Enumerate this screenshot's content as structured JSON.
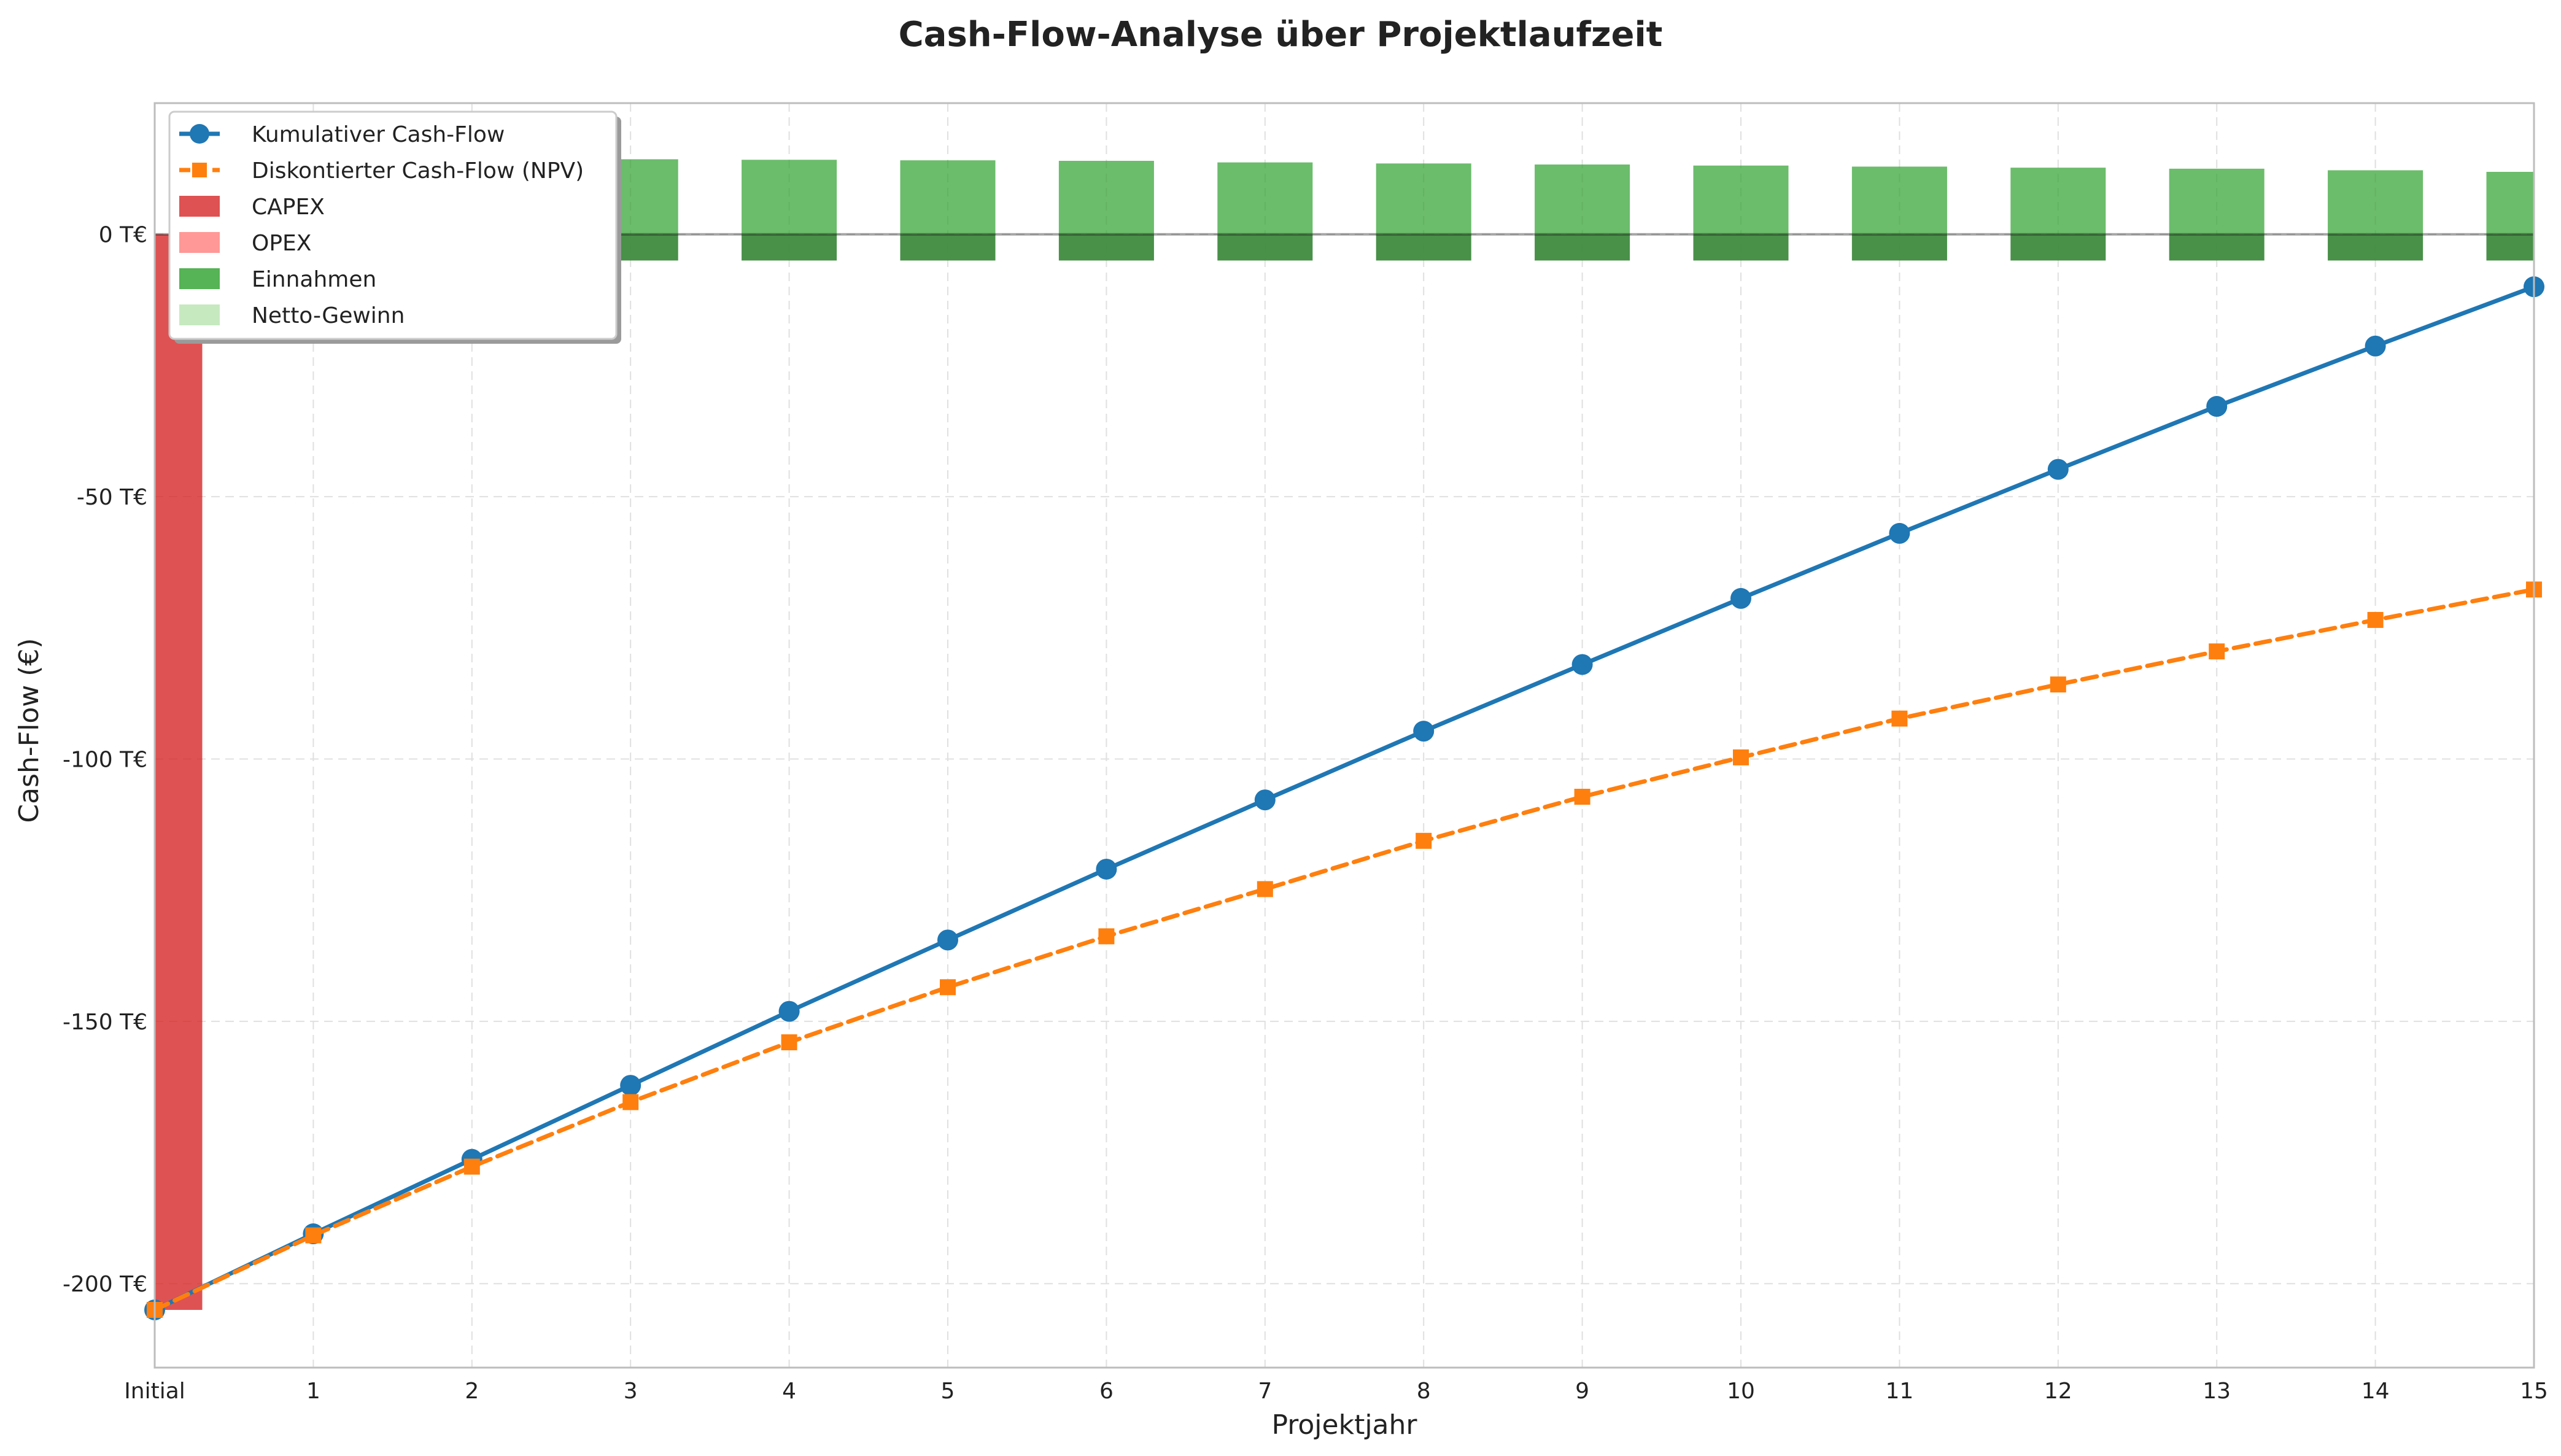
{
  "chart_data": {
    "type": "line",
    "title": "Cash-Flow-Analyse über Projektlaufzeit",
    "xlabel": "Projektjahr",
    "ylabel": "Cash-Flow (€)",
    "categories": [
      "Initial",
      "1",
      "2",
      "3",
      "4",
      "5",
      "6",
      "7",
      "8",
      "9",
      "10",
      "11",
      "12",
      "13",
      "14",
      "15"
    ],
    "x": [
      0,
      1,
      2,
      3,
      4,
      5,
      6,
      7,
      8,
      9,
      10,
      11,
      12,
      13,
      14,
      15
    ],
    "ylim": [
      -216,
      25
    ],
    "yticks": [
      0,
      -50,
      -100,
      -150,
      -200
    ],
    "ytick_labels": [
      "0 T€",
      "-50 T€",
      "-100 T€",
      "-150 T€",
      "-200 T€"
    ],
    "y_unit": "T€",
    "grid": true,
    "legend_position": "top-left",
    "series": [
      {
        "name": "Kumulativer Cash-Flow",
        "kind": "line",
        "marker": "circle",
        "linestyle": "solid",
        "color": "#1f77b4",
        "values": [
          -205,
          -190.5,
          -176.3,
          -162.2,
          -148.1,
          -134.5,
          -121.0,
          -107.8,
          -94.7,
          -82.0,
          -69.4,
          -57.0,
          -44.8,
          -32.8,
          -21.3,
          -10.0
        ]
      },
      {
        "name": "Diskontierter Cash-Flow (NPV)",
        "kind": "line",
        "marker": "square",
        "linestyle": "dashed",
        "color": "#ff7f0e",
        "values": [
          -205,
          -190.8,
          -177.7,
          -165.4,
          -154.0,
          -143.5,
          -133.8,
          -124.8,
          -115.6,
          -107.2,
          -99.7,
          -92.3,
          -85.8,
          -79.5,
          -73.5,
          -67.7
        ]
      },
      {
        "name": "CAPEX",
        "kind": "bar",
        "color": "#d62728",
        "values": [
          -205,
          0,
          0,
          0,
          0,
          0,
          0,
          0,
          0,
          0,
          0,
          0,
          0,
          0,
          0,
          0
        ]
      },
      {
        "name": "OPEX",
        "kind": "bar",
        "color": "#ff9896",
        "values": [
          0,
          -5,
          -5,
          -5,
          -5,
          -5,
          -5,
          -5,
          -5,
          -5,
          -5,
          -5,
          -5,
          -5,
          -5,
          -5
        ]
      },
      {
        "name": "Einnahmen",
        "kind": "bar",
        "color": "#2ca02c",
        "values": [
          0,
          14.5,
          14.4,
          14.3,
          14.2,
          14.1,
          14.0,
          13.7,
          13.5,
          13.3,
          13.1,
          12.9,
          12.7,
          12.5,
          12.2,
          11.9
        ]
      },
      {
        "name": "Netto-Gewinn",
        "kind": "bar",
        "color": "#c7e9c0",
        "values": [
          0,
          9.5,
          9.4,
          9.3,
          9.2,
          9.1,
          9.0,
          8.7,
          8.5,
          8.3,
          8.1,
          7.9,
          7.7,
          7.5,
          7.2,
          6.9
        ]
      }
    ]
  }
}
